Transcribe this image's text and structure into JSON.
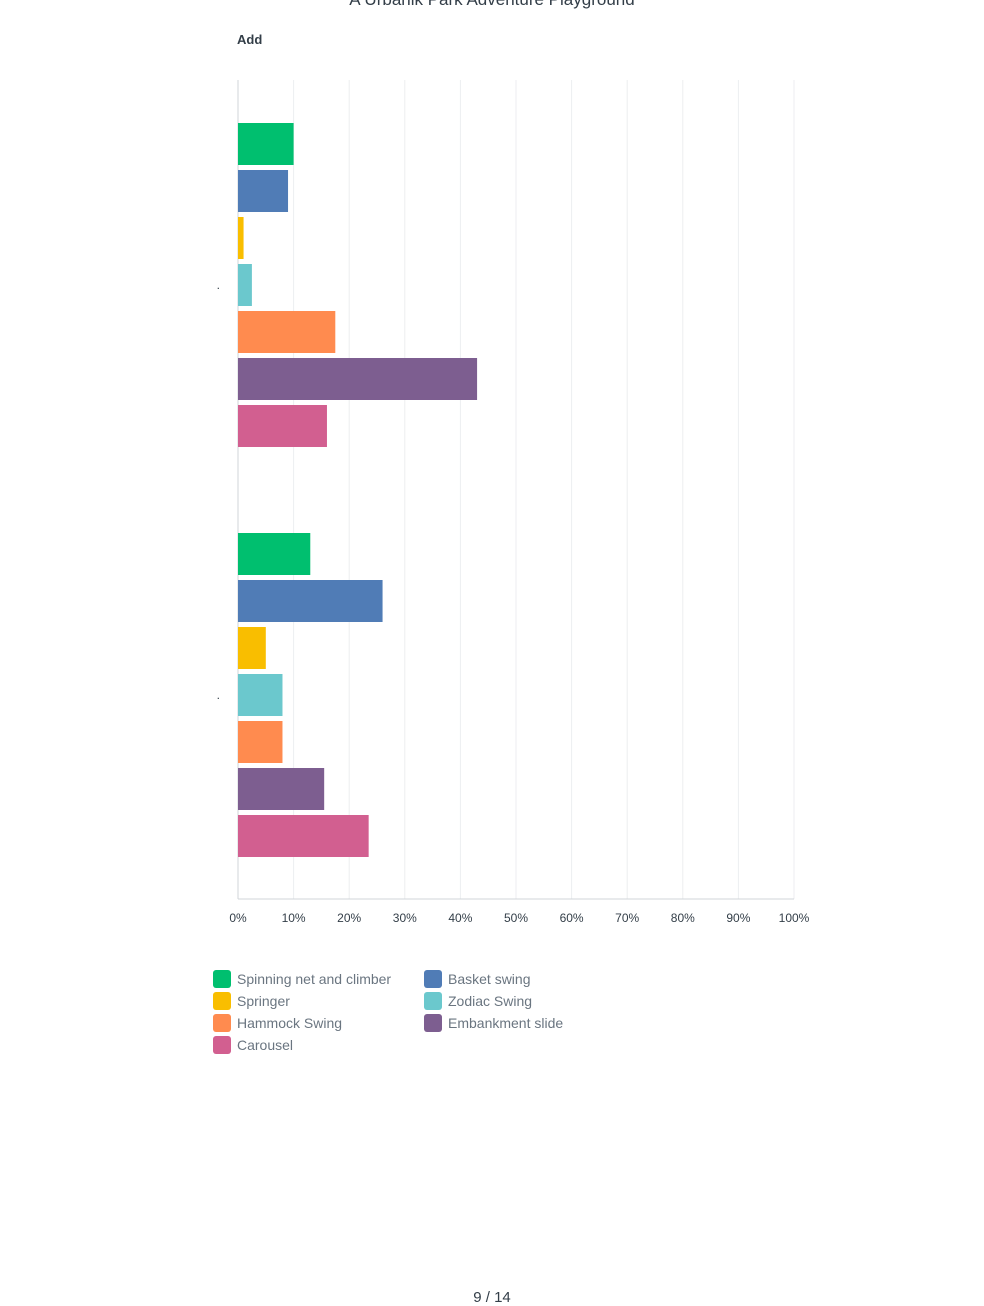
{
  "page": {
    "header_title": "A Urbanik Park Adventure Playground",
    "caption": "Add",
    "footer": "9 / 14"
  },
  "chart_data": {
    "type": "bar",
    "orientation": "horizontal",
    "title": "",
    "xlabel": "",
    "ylabel": "",
    "xlim": [
      0,
      100
    ],
    "x_ticks": [
      "0%",
      "10%",
      "20%",
      "30%",
      "40%",
      "50%",
      "60%",
      "70%",
      "80%",
      "90%",
      "100%"
    ],
    "grid": true,
    "legend_position": "bottom-left",
    "categories": [
      ".",
      "."
    ],
    "series": [
      {
        "name": "Spinning net and climber",
        "color": "#00bf6f",
        "values": [
          10,
          13
        ]
      },
      {
        "name": "Basket swing",
        "color": "#507cb6",
        "values": [
          9,
          26
        ]
      },
      {
        "name": "Springer",
        "color": "#f9be00",
        "values": [
          1,
          5
        ]
      },
      {
        "name": "Zodiac Swing",
        "color": "#6bc8cd",
        "values": [
          2.5,
          8
        ]
      },
      {
        "name": "Hammock Swing",
        "color": "#ff8b4f",
        "values": [
          17.5,
          8
        ]
      },
      {
        "name": "Embankment slide",
        "color": "#7d5e90",
        "values": [
          43,
          15.5
        ]
      },
      {
        "name": "Carousel",
        "color": "#d25f90",
        "values": [
          16,
          23.5
        ]
      }
    ],
    "legend_order": [
      0,
      1,
      2,
      3,
      4,
      5,
      6
    ]
  }
}
